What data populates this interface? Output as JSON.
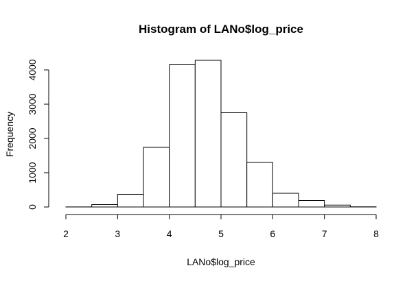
{
  "chart_data": {
    "type": "bar",
    "title": "Histogram of LANo$log_price",
    "xlabel": "LANo$log_price",
    "ylabel": "Frequency",
    "xlim": [
      2,
      8
    ],
    "ylim": [
      0,
      4300
    ],
    "x_ticks": [
      2,
      3,
      4,
      5,
      6,
      7,
      8
    ],
    "y_ticks": [
      0,
      1000,
      2000,
      3000,
      4000
    ],
    "bin_edges": [
      2.0,
      2.5,
      3.0,
      3.5,
      4.0,
      4.5,
      5.0,
      5.5,
      6.0,
      6.5,
      7.0,
      7.5,
      8.0
    ],
    "values": [
      2,
      70,
      370,
      1740,
      4150,
      4280,
      2750,
      1300,
      400,
      190,
      55,
      5
    ],
    "bar_fill": "#ffffff",
    "bar_stroke": "#000000",
    "grid": false,
    "legend": "none"
  }
}
